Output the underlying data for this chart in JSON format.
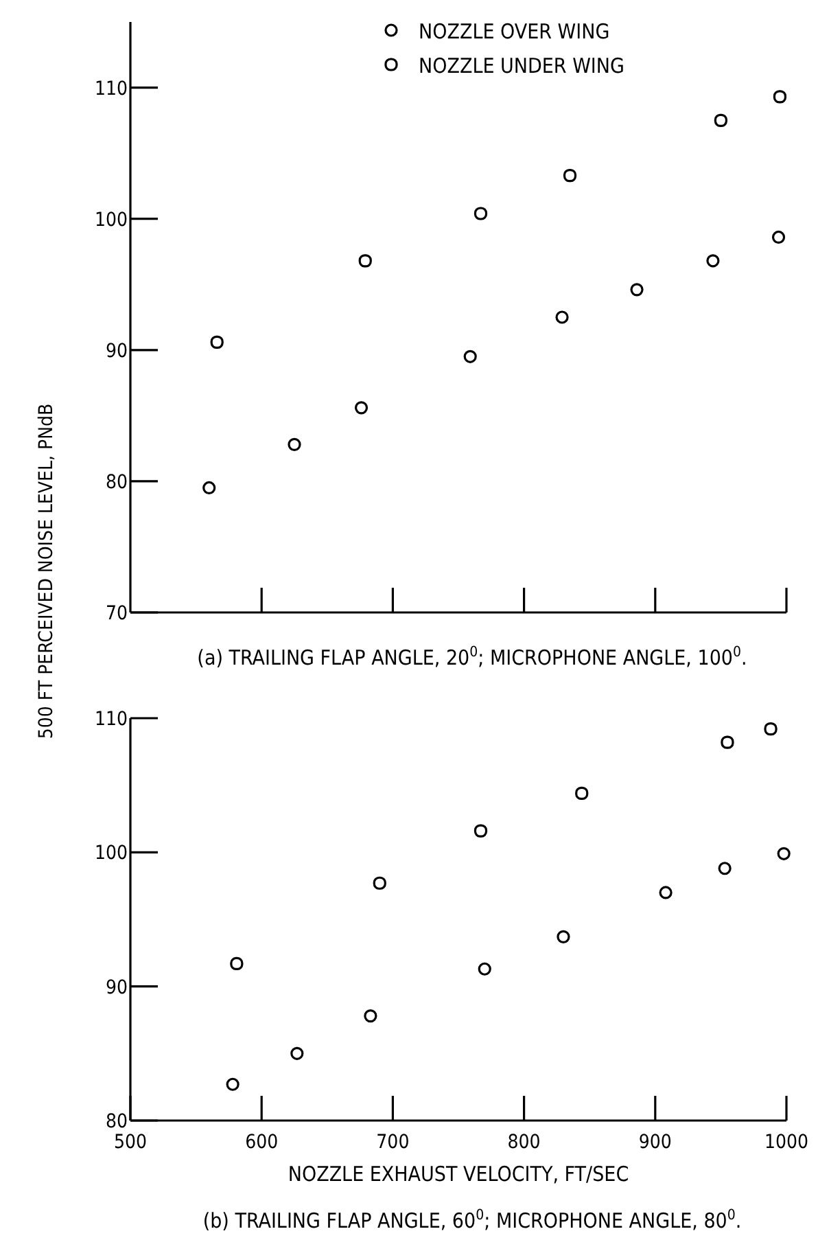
{
  "chart_data": [
    {
      "type": "scatter",
      "ylabel": "500 FT PERCEIVED NOISE LEVEL, PNdB",
      "annotations": [
        "(a) TRAILING FLAP ANGLE, 20$^{0}$; MICROPHONE ANGLE, 100$^{0}$."
      ],
      "xlim": [
        500,
        1000
      ],
      "xticks": [
        600,
        700,
        800,
        900,
        1000
      ],
      "ylim": [
        70,
        115
      ],
      "yticks": [
        70,
        80,
        90,
        100,
        110
      ],
      "tick_labels": "y",
      "legend": "top",
      "grid": false,
      "series": [
        {
          "name": "NOZZLE OVER WING",
          "color": "#000000",
          "marker": "circle",
          "x": [
            560,
            625,
            676,
            759,
            829,
            886,
            944,
            994
          ],
          "values": [
            79.5,
            82.8,
            85.6,
            89.5,
            92.5,
            94.6,
            96.8,
            98.6
          ]
        },
        {
          "name": "NOZZLE UNDER WING",
          "color": "#000000",
          "marker": "square",
          "x": [
            566,
            679,
            767,
            835,
            950,
            995
          ],
          "values": [
            90.6,
            96.8,
            100.4,
            103.3,
            107.5,
            109.3
          ]
        }
      ]
    },
    {
      "type": "scatter",
      "xlabel": "NOZZLE EXHAUST VELOCITY, FT/SEC",
      "annotations": [
        "(b) TRAILING FLAP ANGLE, 60$^{0}$; MICROPHONE ANGLE, 80$^{0}$."
      ],
      "xlim": [
        500,
        1000
      ],
      "xticks": [
        500,
        600,
        700,
        800,
        900,
        1000
      ],
      "ylim": [
        80,
        110
      ],
      "yticks": [
        80,
        90,
        100,
        110
      ],
      "grid": false,
      "series": [
        {
          "color": "#000000",
          "marker": "circle",
          "x": [
            578,
            627,
            683,
            770,
            830,
            908,
            953,
            998
          ],
          "values": [
            82.7,
            85.0,
            87.8,
            91.3,
            93.7,
            97.0,
            98.8,
            99.9
          ]
        },
        {
          "color": "#000000",
          "marker": "square",
          "x": [
            581,
            690,
            767,
            844,
            955,
            988
          ],
          "values": [
            91.7,
            97.7,
            101.6,
            104.4,
            108.2,
            109.2
          ]
        }
      ]
    }
  ]
}
